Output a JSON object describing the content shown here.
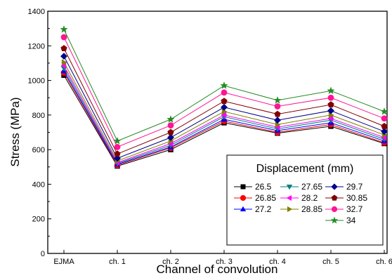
{
  "chart_data": {
    "type": "line",
    "title": "",
    "xlabel": "Channel of convolution",
    "ylabel": "Stress (MPa)",
    "categories": [
      "EJMA",
      "ch. 1",
      "ch. 2",
      "ch. 3",
      "ch. 4",
      "ch. 5",
      "ch. 6"
    ],
    "ylim": [
      0,
      1400
    ],
    "yticks": [
      0,
      200,
      400,
      600,
      800,
      1000,
      1200,
      1400
    ],
    "grid": false,
    "legend": {
      "title": "Displacement (mm)",
      "placement": "bottom-right",
      "columns": 3
    },
    "series": [
      {
        "name": "26.5",
        "marker": "square",
        "color": "#000000",
        "values": [
          1030,
          505,
          600,
          755,
          695,
          735,
          635
        ]
      },
      {
        "name": "26.85",
        "marker": "circle",
        "color": "#ff0000",
        "values": [
          1045,
          510,
          610,
          765,
          700,
          745,
          640
        ]
      },
      {
        "name": "27.2",
        "marker": "triangle-up",
        "color": "#0000ff",
        "values": [
          1055,
          515,
          615,
          775,
          710,
          755,
          650
        ]
      },
      {
        "name": "27.65",
        "marker": "triangle-down",
        "color": "#008080",
        "values": [
          1070,
          520,
          625,
          790,
          720,
          770,
          660
        ]
      },
      {
        "name": "28.2",
        "marker": "triangle-left",
        "color": "#ff00ff",
        "values": [
          1085,
          525,
          635,
          800,
          730,
          780,
          670
        ]
      },
      {
        "name": "28.85",
        "marker": "triangle-right",
        "color": "#808000",
        "values": [
          1105,
          535,
          650,
          820,
          745,
          800,
          685
        ]
      },
      {
        "name": "29.7",
        "marker": "diamond",
        "color": "#00008b",
        "values": [
          1140,
          550,
          670,
          845,
          770,
          825,
          705
        ]
      },
      {
        "name": "30.85",
        "marker": "pentagon",
        "color": "#800000",
        "values": [
          1185,
          575,
          700,
          880,
          805,
          860,
          735
        ]
      },
      {
        "name": "32.7",
        "marker": "circle",
        "color": "#ff1493",
        "values": [
          1250,
          615,
          740,
          930,
          850,
          900,
          780
        ]
      },
      {
        "name": "34",
        "marker": "star",
        "color": "#228b22",
        "values": [
          1295,
          650,
          775,
          970,
          885,
          940,
          820
        ]
      }
    ]
  }
}
